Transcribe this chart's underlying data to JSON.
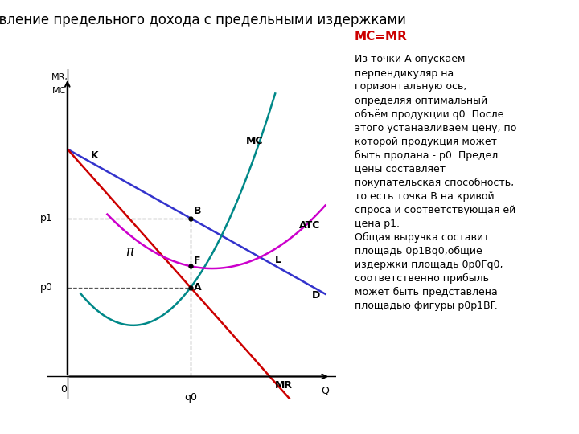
{
  "title": "Сопоставление предельного дохода с предельными издержками",
  "title_fontsize": 12,
  "bg_color": "#ffffff",
  "curves": {
    "D": {
      "color": "#3333cc"
    },
    "MR": {
      "color": "#cc0000"
    },
    "MC": {
      "color": "#008888"
    },
    "ATC": {
      "color": "#cc00cc"
    }
  },
  "dashed_color": "#555555",
  "text_mc_mr": "MC=MR",
  "text_mc_mr_color": "#cc0000",
  "text_body": "Из точки А опускаем\nперпендикуляр на\nгоризонтальную ось,\nопределяя оптимальный\nобъём продукции q0. После\nэтого устанавливаем цену, по\nкоторой продукция может\nбыть продана - р0. Предел\nцены составляет\nпокупательская способность,\nто есть точка В на кривой\nспроса и соответствующая ей\nцена р1.\nОбщая выручка составит\nплощадь 0р1Вq0,общие\nиздержки площадь 0р0Fq0,\nсоответственно прибыль\nможет быть представлена\nплощадью фигуры р0р1ВF.",
  "text_fontsize": 9,
  "text_mc_mr_fontsize": 11
}
